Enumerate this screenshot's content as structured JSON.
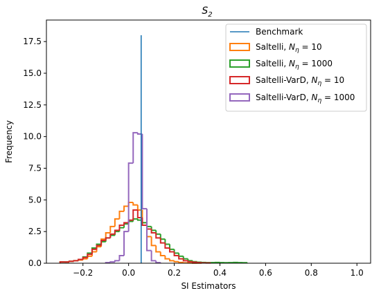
{
  "chart_data": {
    "type": "histogram",
    "title": {
      "main": "S",
      "subscript": "2"
    },
    "xlabel": "SI Estimators",
    "ylabel": "Frequency",
    "xlim": [
      -0.36,
      1.06
    ],
    "ylim": [
      0,
      19.2
    ],
    "xticks": [
      -0.2,
      0.0,
      0.2,
      0.4,
      0.6,
      0.8,
      1.0
    ],
    "xtick_labels": [
      "−0.2",
      "0.0",
      "0.2",
      "0.4",
      "0.6",
      "0.8",
      "1.0"
    ],
    "yticks": [
      0.0,
      2.5,
      5.0,
      7.5,
      10.0,
      12.5,
      15.0,
      17.5
    ],
    "ytick_labels": [
      "0.0",
      "2.5",
      "5.0",
      "7.5",
      "10.0",
      "12.5",
      "15.0",
      "17.5"
    ],
    "grid": false,
    "legend_position": "top-right",
    "benchmark": {
      "name": "Benchmark",
      "x": 0.055,
      "height": 18.0,
      "color": "#1f77b4"
    },
    "series": [
      {
        "name": "Saltelli, N_η = 10",
        "legend_prefix": "Saltelli, ",
        "legend_N": "N",
        "legend_sub": "η",
        "legend_suffix": " = 10",
        "color": "#ff7f0e",
        "x_start": -0.3,
        "bin_width": 0.02,
        "values": [
          0.1,
          0.1,
          0.15,
          0.2,
          0.25,
          0.35,
          0.55,
          0.9,
          1.3,
          1.9,
          2.4,
          2.9,
          3.5,
          4.1,
          4.5,
          4.8,
          4.6,
          4.2,
          3.2,
          2.1,
          1.4,
          0.9,
          0.6,
          0.35,
          0.2,
          0.12,
          0.06,
          0.03,
          0.02,
          0.01,
          0.01
        ]
      },
      {
        "name": "Saltelli, N_η = 1000",
        "legend_prefix": "Saltelli, ",
        "legend_N": "N",
        "legend_sub": "η",
        "legend_suffix": " = 1000",
        "color": "#2ca02c",
        "x_start": -0.3,
        "bin_width": 0.02,
        "values": [
          0.1,
          0.1,
          0.15,
          0.2,
          0.3,
          0.5,
          0.8,
          1.2,
          1.5,
          1.7,
          2.0,
          2.2,
          2.5,
          2.8,
          3.1,
          3.3,
          3.5,
          3.4,
          3.2,
          2.9,
          2.6,
          2.3,
          1.9,
          1.5,
          1.1,
          0.8,
          0.55,
          0.35,
          0.2,
          0.12,
          0.08,
          0.06,
          0.05,
          0.05,
          0.06,
          0.05,
          0.04,
          0.05,
          0.06,
          0.05,
          0.04
        ]
      },
      {
        "name": "Saltelli-VarD, N_η = 10",
        "legend_prefix": "Saltelli-VarD, ",
        "legend_N": "N",
        "legend_sub": "η",
        "legend_suffix": " = 10",
        "color": "#d62728",
        "x_start": -0.3,
        "bin_width": 0.02,
        "values": [
          0.1,
          0.1,
          0.15,
          0.2,
          0.3,
          0.45,
          0.7,
          1.1,
          1.4,
          1.8,
          2.0,
          2.3,
          2.6,
          3.0,
          3.2,
          3.4,
          4.2,
          3.6,
          3.0,
          2.7,
          2.4,
          2.0,
          1.6,
          1.2,
          0.9,
          0.6,
          0.35,
          0.2,
          0.12,
          0.08,
          0.05,
          0.03,
          0.02
        ]
      },
      {
        "name": "Saltelli-VarD, N_η = 1000",
        "legend_prefix": "Saltelli-VarD, ",
        "legend_N": "N",
        "legend_sub": "η",
        "legend_suffix": " = 1000",
        "color": "#9467bd",
        "x_start": -0.1,
        "bin_width": 0.02,
        "values": [
          0.05,
          0.1,
          0.2,
          0.6,
          2.5,
          7.9,
          10.3,
          10.2,
          4.3,
          1.0,
          0.2,
          0.05
        ]
      }
    ]
  }
}
